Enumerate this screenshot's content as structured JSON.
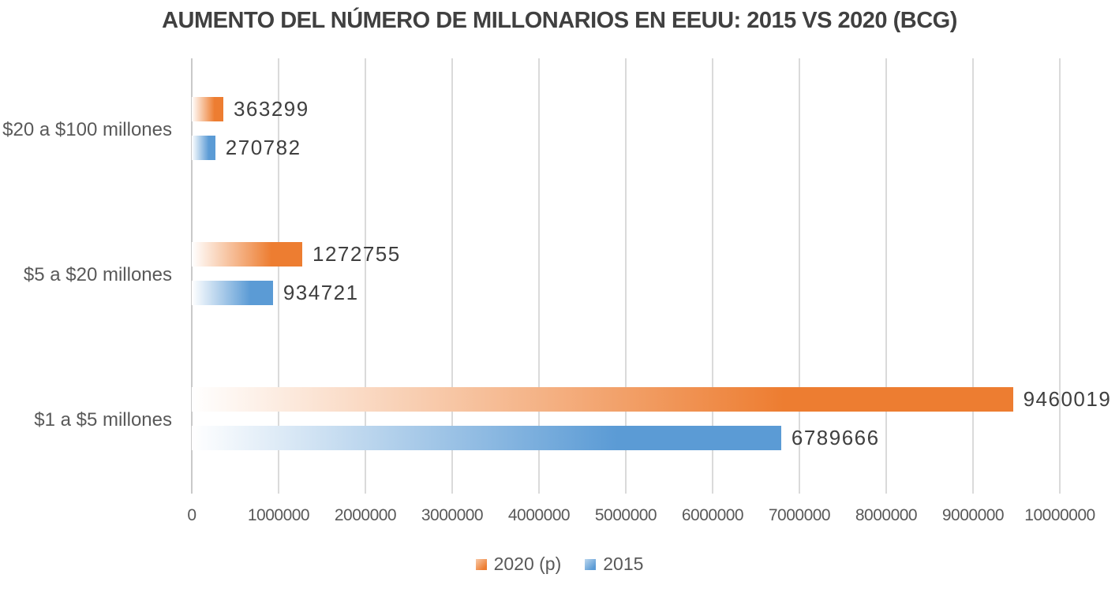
{
  "chart_data": {
    "type": "bar",
    "orientation": "horizontal",
    "title": "AUMENTO DEL NÚMERO DE MILLONARIOS EN EEUU: 2015 VS 2020 (BCG)",
    "categories": [
      "$20 a $100 millones",
      "$5 a $20 millones",
      "$1 a $5 millones"
    ],
    "series": [
      {
        "name": "2020 (p)",
        "color": "#ED7D31",
        "values": [
          363299,
          1272755,
          9460019
        ]
      },
      {
        "name": "2015",
        "color": "#5B9BD5",
        "values": [
          270782,
          934721,
          6789666
        ]
      }
    ],
    "data_labels": [
      [
        "363299",
        "1272755",
        "9460019"
      ],
      [
        "270782",
        "934721",
        "6789666"
      ]
    ],
    "xlim": [
      0,
      10000000
    ],
    "x_tick_labels": [
      "0",
      "1000000",
      "2000000",
      "3000000",
      "4000000",
      "5000000",
      "6000000",
      "7000000",
      "8000000",
      "9000000",
      "10000000"
    ],
    "grid": true,
    "legend_position": "bottom",
    "colors": {
      "gridline": "#dadada",
      "zero_line": "#c9c9c9",
      "title_text": "#404040",
      "axis_text": "#595959",
      "value_text": "#3f3f3f"
    }
  }
}
